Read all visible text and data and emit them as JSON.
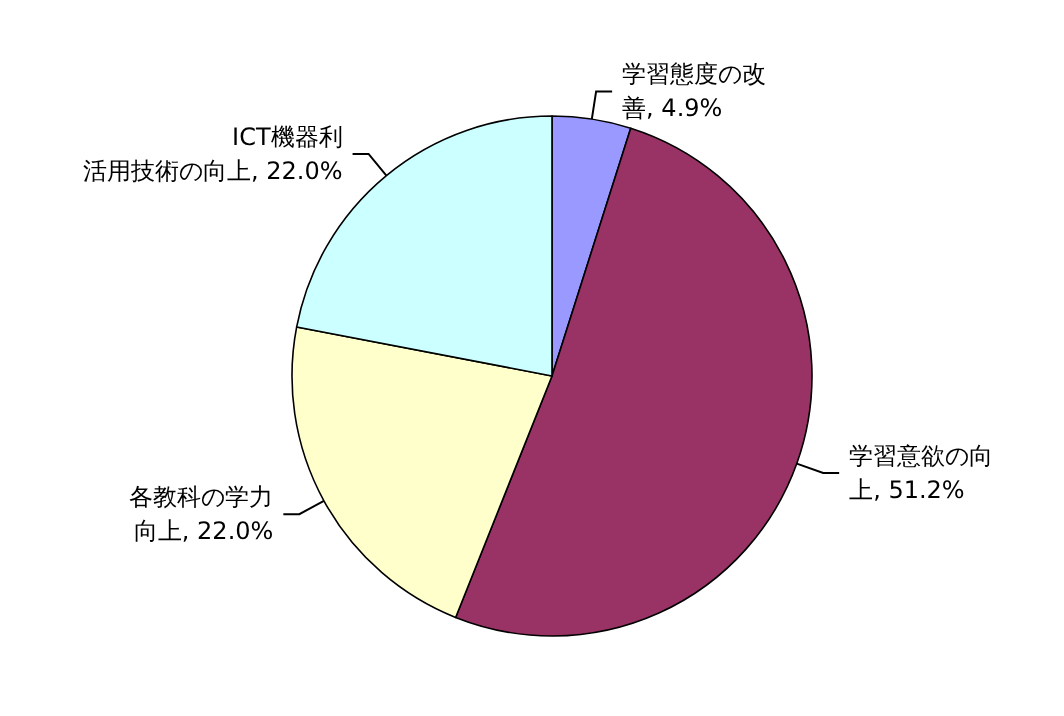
{
  "chart_data": {
    "type": "pie",
    "categories": [
      "学習態度の改善",
      "学習意欲の向上",
      "各教科の学力向上",
      "ICT機器利活用技術の向上"
    ],
    "values": [
      4.9,
      51.2,
      22.0,
      22.0
    ],
    "value_labels": [
      "4.9%",
      "51.2%",
      "22.0%",
      "22.0%"
    ],
    "colors": [
      "#9999ff",
      "#993366",
      "#ffffcc",
      "#ccffff"
    ],
    "legend": false
  }
}
